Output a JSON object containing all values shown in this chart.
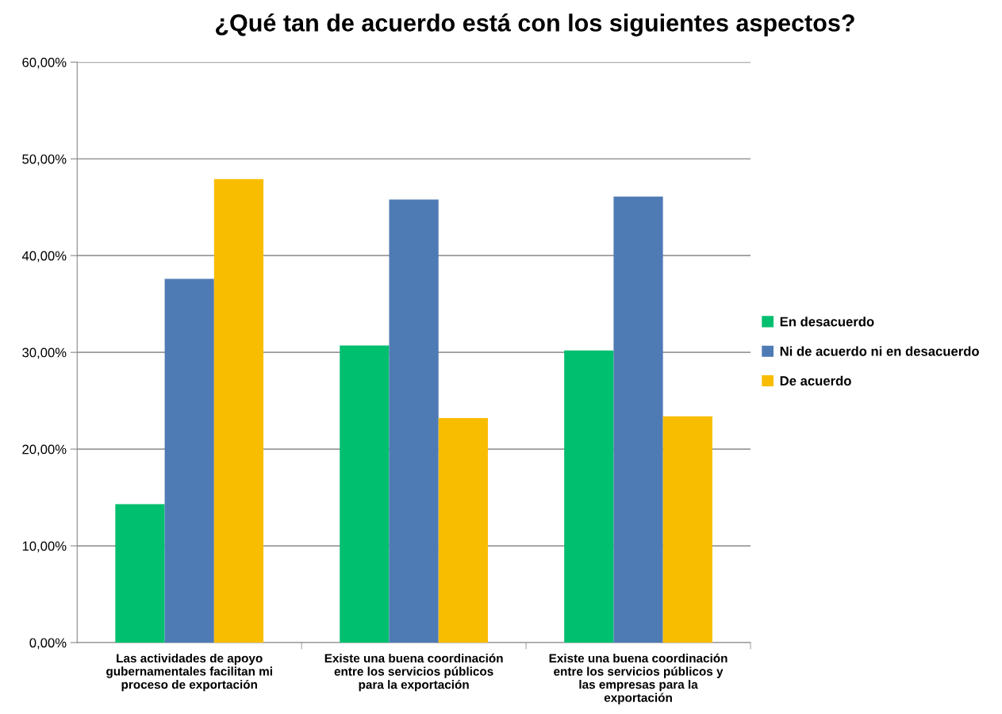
{
  "chart_data": {
    "type": "bar",
    "title": "¿Qué tan de acuerdo está con los siguientes aspectos?",
    "categories": [
      "Las actividades de apoyo gubernamentales facilitan mi proceso de exportación",
      "Existe una buena coordinación entre los servicios públicos para la exportación",
      "Existe una buena coordinación entre los servicios públicos y las empresas para la exportación"
    ],
    "series": [
      {
        "name": "En desacuerdo",
        "color": "#00bf6f",
        "values": [
          14.3,
          30.7,
          30.2
        ]
      },
      {
        "name": "Ni de acuerdo ni en desacuerdo",
        "color": "#4f7bb5",
        "values": [
          37.6,
          45.8,
          46.1
        ]
      },
      {
        "name": "De acuerdo",
        "color": "#f9bd00",
        "values": [
          47.9,
          23.2,
          23.4
        ]
      }
    ],
    "ylim": [
      0,
      60
    ],
    "yticks": [
      {
        "value": 0,
        "label": "0,00%"
      },
      {
        "value": 10,
        "label": "10,00%"
      },
      {
        "value": 20,
        "label": "20,00%"
      },
      {
        "value": 30,
        "label": "30,00%"
      },
      {
        "value": 40,
        "label": "40,00%"
      },
      {
        "value": 50,
        "label": "50,00%"
      },
      {
        "value": 60,
        "label": "60,00%"
      }
    ],
    "grid": "y",
    "legend": "right"
  }
}
